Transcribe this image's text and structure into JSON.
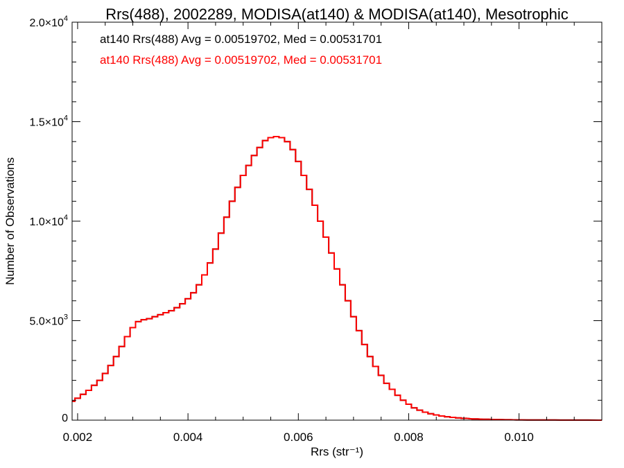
{
  "chart_data": {
    "type": "line",
    "title": "Rrs(488), 2002289, MODISA(at140) & MODISA(at140), Mesotrophic",
    "xlabel": "Rrs (str⁻¹)",
    "ylabel": "Number of Observations",
    "xlim": [
      0.0019,
      0.0115
    ],
    "ylim": [
      0,
      20000
    ],
    "x_ticks": [
      0.002,
      0.004,
      0.006,
      0.008,
      0.01
    ],
    "x_tick_labels": [
      "0.002",
      "0.004",
      "0.006",
      "0.008",
      "0.010"
    ],
    "y_ticks": [
      0,
      5000,
      10000,
      15000,
      20000
    ],
    "y_tick_labels": [
      {
        "mant": "0",
        "exp": ""
      },
      {
        "mant": "5.0×10",
        "exp": "3"
      },
      {
        "mant": "1.0×10",
        "exp": "4"
      },
      {
        "mant": "1.5×10",
        "exp": "4"
      },
      {
        "mant": "2.0×10",
        "exp": "4"
      }
    ],
    "legend_placement": "top-left",
    "annotations": [
      {
        "text": "at140 Rrs(488) Avg = 0.00519702, Med = 0.00531701",
        "color": "#000000"
      },
      {
        "text": "at140 Rrs(488) Avg = 0.00519702, Med = 0.00531701",
        "color": "#ff0000"
      }
    ],
    "series": [
      {
        "color": "#000000",
        "x": [
          0.0019,
          0.002,
          0.0021,
          0.0022,
          0.0023,
          0.0024,
          0.0025,
          0.0026,
          0.0027,
          0.0028,
          0.0029,
          0.003,
          0.0031,
          0.0032,
          0.0033,
          0.0034,
          0.0035,
          0.0036,
          0.0037,
          0.0038,
          0.0039,
          0.004,
          0.0041,
          0.0042,
          0.0043,
          0.0044,
          0.0045,
          0.0046,
          0.0047,
          0.0048,
          0.0049,
          0.005,
          0.0051,
          0.0052,
          0.0053,
          0.0054,
          0.0055,
          0.0056,
          0.0057,
          0.0058,
          0.0059,
          0.006,
          0.0061,
          0.0062,
          0.0063,
          0.0064,
          0.0065,
          0.0066,
          0.0067,
          0.0068,
          0.0069,
          0.007,
          0.0071,
          0.0072,
          0.0073,
          0.0074,
          0.0075,
          0.0076,
          0.0077,
          0.0078,
          0.0079,
          0.008,
          0.0081,
          0.0082,
          0.0083,
          0.0084,
          0.0085,
          0.0086,
          0.0087,
          0.0088,
          0.0089,
          0.009,
          0.0092,
          0.0094,
          0.0096,
          0.0098,
          0.01,
          0.0102,
          0.0104,
          0.0106,
          0.0108,
          0.011,
          0.0112,
          0.0115
        ],
        "y": [
          950,
          1100,
          1300,
          1500,
          1750,
          2000,
          2350,
          2750,
          3200,
          3700,
          4200,
          4650,
          4950,
          5050,
          5100,
          5200,
          5300,
          5400,
          5500,
          5650,
          5850,
          6100,
          6400,
          6800,
          7300,
          7900,
          8600,
          9400,
          10200,
          11000,
          11700,
          12300,
          12800,
          13300,
          13700,
          14050,
          14200,
          14250,
          14200,
          14000,
          13600,
          13000,
          12300,
          11600,
          10800,
          10000,
          9200,
          8400,
          7600,
          6800,
          6000,
          5200,
          4500,
          3800,
          3200,
          2700,
          2250,
          1850,
          1550,
          1250,
          1000,
          800,
          620,
          500,
          400,
          320,
          260,
          210,
          170,
          140,
          110,
          90,
          60,
          45,
          30,
          20,
          15,
          10,
          8,
          6,
          4,
          3,
          2,
          1
        ]
      },
      {
        "color": "#ff0000",
        "x": [
          0.0019,
          0.002,
          0.0021,
          0.0022,
          0.0023,
          0.0024,
          0.0025,
          0.0026,
          0.0027,
          0.0028,
          0.0029,
          0.003,
          0.0031,
          0.0032,
          0.0033,
          0.0034,
          0.0035,
          0.0036,
          0.0037,
          0.0038,
          0.0039,
          0.004,
          0.0041,
          0.0042,
          0.0043,
          0.0044,
          0.0045,
          0.0046,
          0.0047,
          0.0048,
          0.0049,
          0.005,
          0.0051,
          0.0052,
          0.0053,
          0.0054,
          0.0055,
          0.0056,
          0.0057,
          0.0058,
          0.0059,
          0.006,
          0.0061,
          0.0062,
          0.0063,
          0.0064,
          0.0065,
          0.0066,
          0.0067,
          0.0068,
          0.0069,
          0.007,
          0.0071,
          0.0072,
          0.0073,
          0.0074,
          0.0075,
          0.0076,
          0.0077,
          0.0078,
          0.0079,
          0.008,
          0.0081,
          0.0082,
          0.0083,
          0.0084,
          0.0085,
          0.0086,
          0.0087,
          0.0088,
          0.0089,
          0.009,
          0.0092,
          0.0094,
          0.0096,
          0.0098,
          0.01,
          0.0102,
          0.0104,
          0.0106,
          0.0108,
          0.011,
          0.0112,
          0.0115
        ],
        "y": [
          950,
          1100,
          1300,
          1500,
          1750,
          2000,
          2350,
          2750,
          3200,
          3700,
          4200,
          4650,
          4950,
          5050,
          5100,
          5200,
          5300,
          5400,
          5500,
          5650,
          5850,
          6100,
          6400,
          6800,
          7300,
          7900,
          8600,
          9400,
          10200,
          11000,
          11700,
          12300,
          12800,
          13300,
          13700,
          14050,
          14200,
          14250,
          14200,
          14000,
          13600,
          13000,
          12300,
          11600,
          10800,
          10000,
          9200,
          8400,
          7600,
          6800,
          6000,
          5200,
          4500,
          3800,
          3200,
          2700,
          2250,
          1850,
          1550,
          1250,
          1000,
          800,
          620,
          500,
          400,
          320,
          260,
          210,
          170,
          140,
          110,
          90,
          60,
          45,
          30,
          20,
          15,
          10,
          8,
          6,
          4,
          3,
          2,
          1
        ]
      }
    ]
  }
}
